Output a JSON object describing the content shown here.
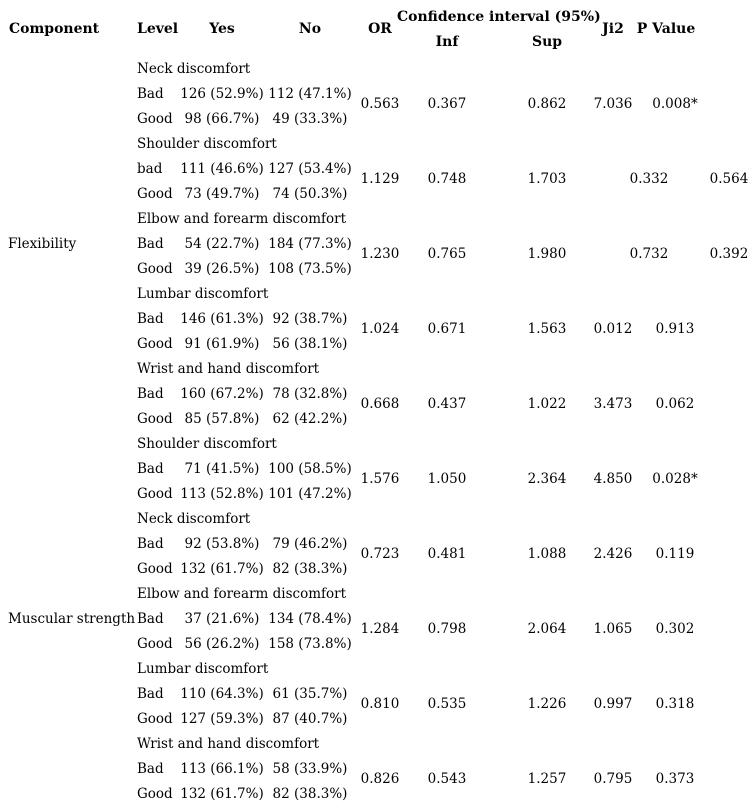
{
  "header": {
    "component": "Component",
    "level": "Level",
    "yes": "Yes",
    "no": "No",
    "or": "OR",
    "ci": "Confidence interval (95%)",
    "inf": "Inf",
    "sup": "Sup",
    "ji2": "Ji2",
    "p": "P Value"
  },
  "groups": [
    {
      "label": "Flexibility"
    },
    {
      "label": "Muscular strength"
    }
  ],
  "sections": [
    {
      "title": "Neck discomfort",
      "rows": [
        {
          "level": "Bad",
          "yes": "126 (52.9%)",
          "no": "112 (47.1%)"
        },
        {
          "level": "Good",
          "yes": "98 (66.7%)",
          "no": "49 (33.3%)"
        }
      ],
      "or": "0.563",
      "inf": "0.367",
      "sup": "0.862",
      "ji2": "7.036",
      "p": "0.008*"
    },
    {
      "title": "Shoulder discomfort",
      "rows": [
        {
          "level": "bad",
          "yes": "111 (46.6%)",
          "no": "127 (53.4%)"
        },
        {
          "level": "Good",
          "yes": "73 (49.7%)",
          "no": "74 (50.3%)"
        }
      ],
      "or": "1.129",
      "inf": "0.748",
      "sup": "1.703",
      "ji2": "0.332",
      "p": "0.564"
    },
    {
      "title": "Elbow and forearm discomfort",
      "rows": [
        {
          "level": "Bad",
          "yes": "54 (22.7%)",
          "no": "184 (77.3%)"
        },
        {
          "level": "Good",
          "yes": "39 (26.5%)",
          "no": "108 (73.5%)"
        }
      ],
      "or": "1.230",
      "inf": "0.765",
      "sup": "1.980",
      "ji2": "0.732",
      "p": "0.392"
    },
    {
      "title": "Lumbar discomfort",
      "rows": [
        {
          "level": "Bad",
          "yes": "146 (61.3%)",
          "no": "92 (38.7%)"
        },
        {
          "level": "Good",
          "yes": "91 (61.9%)",
          "no": "56 (38.1%)"
        }
      ],
      "or": "1.024",
      "inf": "0.671",
      "sup": "1.563",
      "ji2": "0.012",
      "p": "0.913"
    },
    {
      "title": "Wrist and hand discomfort",
      "rows": [
        {
          "level": "Bad",
          "yes": "160 (67.2%)",
          "no": "78 (32.8%)"
        },
        {
          "level": "Good",
          "yes": "85 (57.8%)",
          "no": "62 (42.2%)"
        }
      ],
      "or": "0.668",
      "inf": "0.437",
      "sup": "1.022",
      "ji2": "3.473",
      "p": "0.062"
    },
    {
      "title": "Shoulder discomfort",
      "rows": [
        {
          "level": "Bad",
          "yes": "71 (41.5%)",
          "no": "100 (58.5%)"
        },
        {
          "level": "Good",
          "yes": "113 (52.8%)",
          "no": "101 (47.2%)"
        }
      ],
      "or": "1.576",
      "inf": "1.050",
      "sup": "2.364",
      "ji2": "4.850",
      "p": "0.028*"
    },
    {
      "title": "Neck discomfort",
      "rows": [
        {
          "level": "Bad",
          "yes": "92 (53.8%)",
          "no": "79 (46.2%)"
        },
        {
          "level": "Good",
          "yes": "132 (61.7%)",
          "no": "82 (38.3%)"
        }
      ],
      "or": "0.723",
      "inf": "0.481",
      "sup": "1.088",
      "ji2": "2.426",
      "p": "0.119"
    },
    {
      "title": "Elbow and forearm discomfort",
      "rows": [
        {
          "level": "Bad",
          "yes": "37 (21.6%)",
          "no": "134 (78.4%)"
        },
        {
          "level": "Good",
          "yes": "56 (26.2%)",
          "no": "158 (73.8%)"
        }
      ],
      "or": "1.284",
      "inf": "0.798",
      "sup": "2.064",
      "ji2": "1.065",
      "p": "0.302"
    },
    {
      "title": "Lumbar discomfort",
      "rows": [
        {
          "level": "Bad",
          "yes": "110 (64.3%)",
          "no": "61 (35.7%)"
        },
        {
          "level": "Good",
          "yes": "127 (59.3%)",
          "no": "87 (40.7%)"
        }
      ],
      "or": "0.810",
      "inf": "0.535",
      "sup": "1.226",
      "ji2": "0.997",
      "p": "0.318"
    },
    {
      "title": "Wrist and hand discomfort",
      "rows": [
        {
          "level": "Bad",
          "yes": "113 (66.1%)",
          "no": "58 (33.9%)"
        },
        {
          "level": "Good",
          "yes": "132 (61.7%)",
          "no": "82 (38.3%)"
        }
      ],
      "or": "0.826",
      "inf": "0.543",
      "sup": "1.257",
      "ji2": "0.795",
      "p": "0.373"
    }
  ]
}
